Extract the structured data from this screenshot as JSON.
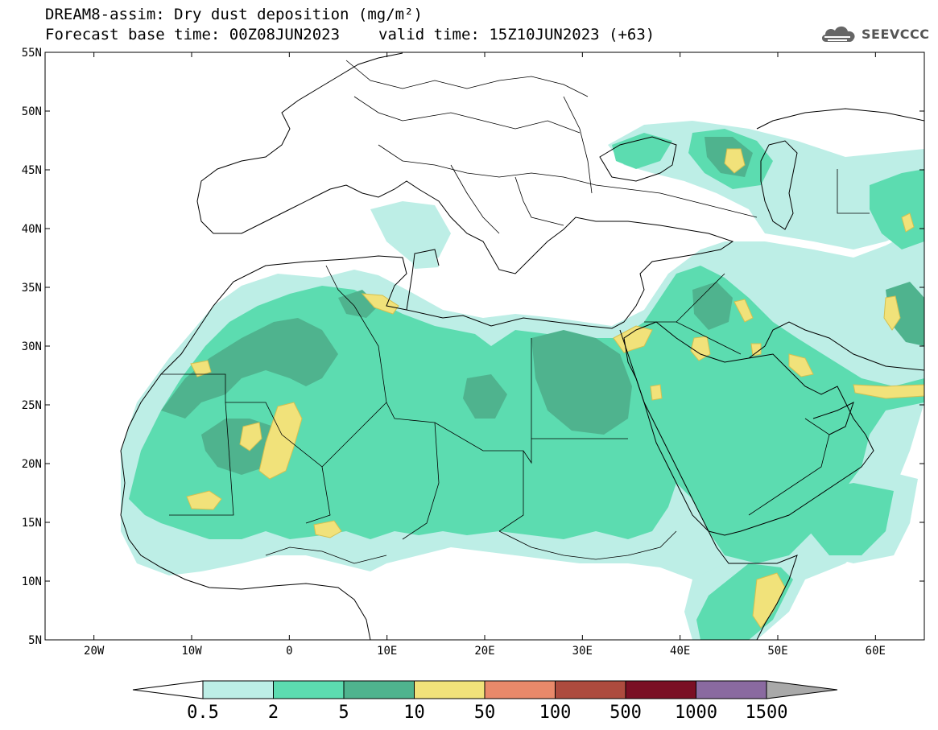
{
  "title": {
    "line1": "DREAM8-assim: Dry dust deposition (mg/m²)",
    "base_time": "Forecast base time: 00Z08JUN2023",
    "valid_time": "valid time: 15Z10JUN2023 (+63)"
  },
  "logo": {
    "text": "SEEVCCC",
    "icon": "cloud-logo-icon"
  },
  "map": {
    "lon_range": [
      -25,
      65
    ],
    "lat_range": [
      5,
      55
    ],
    "lon_ticks": [
      {
        "value": -20,
        "label": "20W"
      },
      {
        "value": -10,
        "label": "10W"
      },
      {
        "value": 0,
        "label": "0"
      },
      {
        "value": 10,
        "label": "10E"
      },
      {
        "value": 20,
        "label": "20E"
      },
      {
        "value": 30,
        "label": "30E"
      },
      {
        "value": 40,
        "label": "40E"
      },
      {
        "value": 50,
        "label": "50E"
      },
      {
        "value": 60,
        "label": "60E"
      }
    ],
    "lat_ticks": [
      {
        "value": 55,
        "label": "55N"
      },
      {
        "value": 50,
        "label": "50N"
      },
      {
        "value": 45,
        "label": "45N"
      },
      {
        "value": 40,
        "label": "40N"
      },
      {
        "value": 35,
        "label": "35N"
      },
      {
        "value": 30,
        "label": "30N"
      },
      {
        "value": 25,
        "label": "25N"
      },
      {
        "value": 20,
        "label": "20N"
      },
      {
        "value": 15,
        "label": "15N"
      },
      {
        "value": 10,
        "label": "10N"
      },
      {
        "value": 5,
        "label": "5N"
      }
    ]
  },
  "colorbar": {
    "colors": [
      "#bdeee6",
      "#5cdcb0",
      "#4fb38e",
      "#f1e27a",
      "#e9896a",
      "#ad4b3e",
      "#7a0f24",
      "#8a6aa0"
    ],
    "under_color": "#ffffff",
    "over_color": "#a9a9a9",
    "labels": [
      "0.5",
      "2",
      "5",
      "10",
      "50",
      "100",
      "500",
      "1000",
      "1500"
    ]
  }
}
